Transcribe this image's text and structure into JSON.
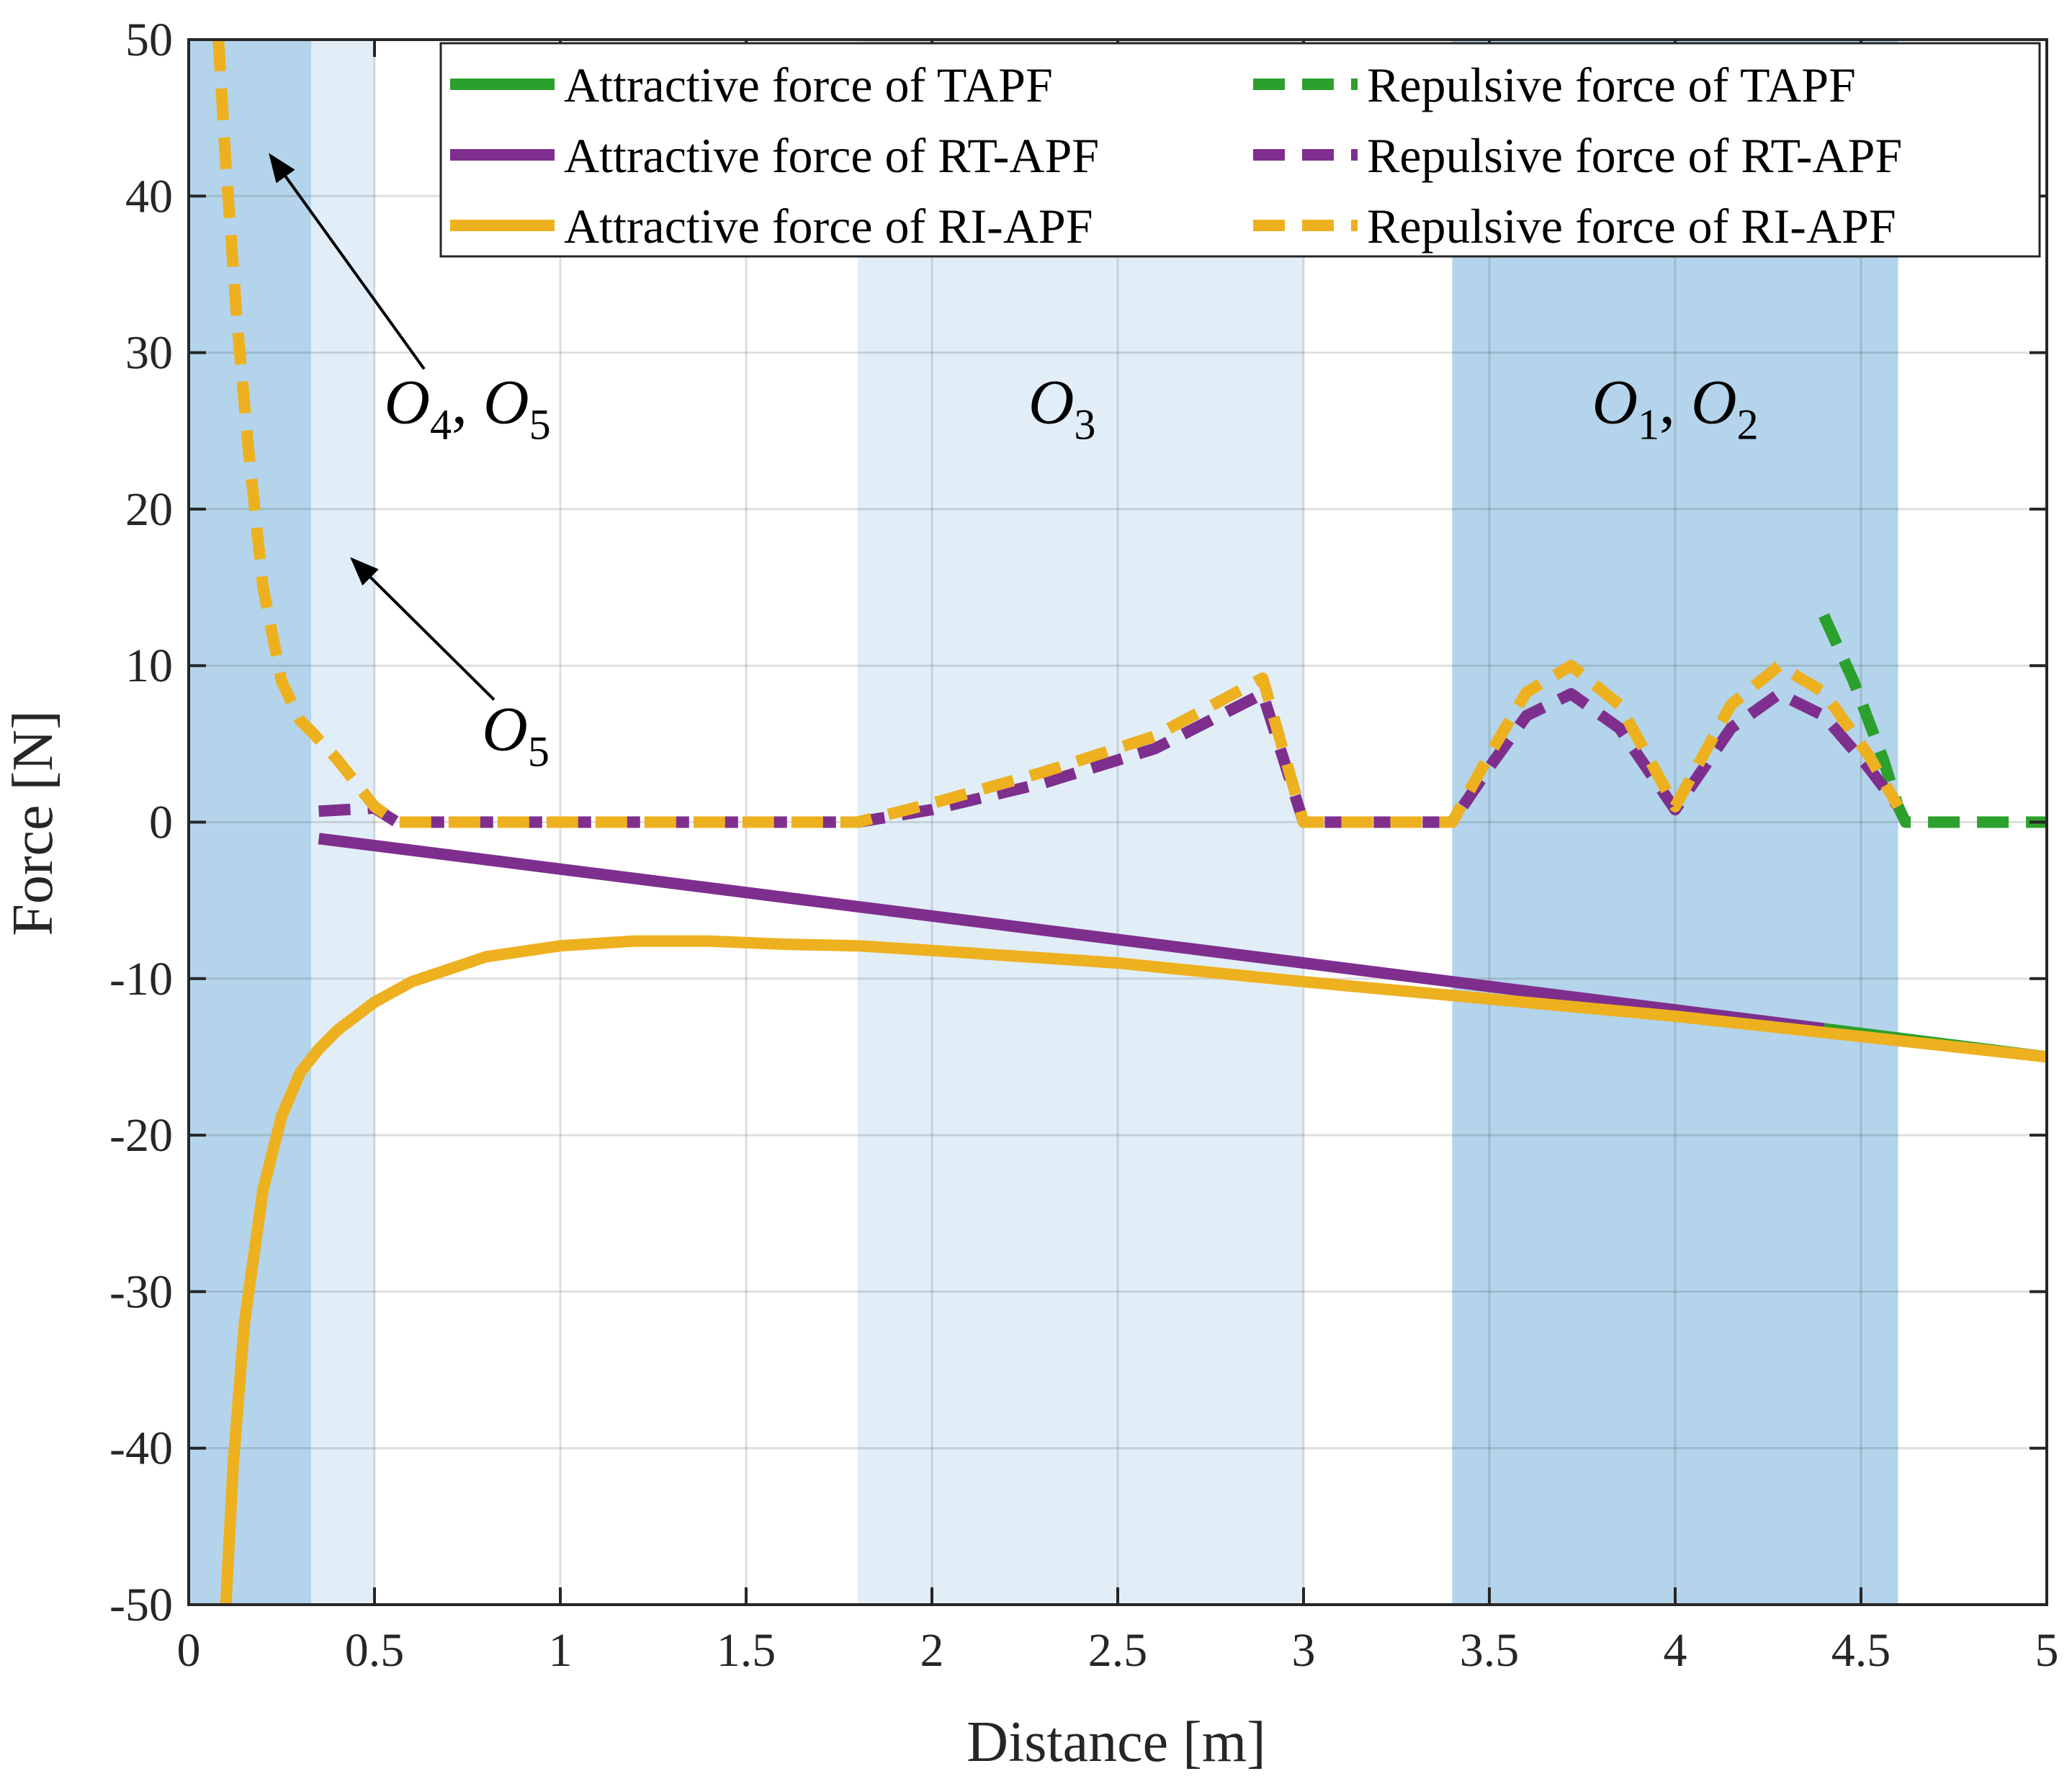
{
  "chart_data": {
    "type": "line",
    "title": "",
    "xlabel": "Distance [m]",
    "ylabel": "Force [N]",
    "xlim": [
      0,
      5
    ],
    "ylim": [
      -50,
      50
    ],
    "grid": true,
    "legend_position": "top-right",
    "x_ticks": [
      "0",
      "0.5",
      "1",
      "1.5",
      "2",
      "2.5",
      "3",
      "3.5",
      "4",
      "4.5",
      "5"
    ],
    "y_ticks": [
      "-50",
      "-40",
      "-30",
      "-20",
      "-10",
      "0",
      "10",
      "20",
      "30",
      "40",
      "50"
    ],
    "shaded_regions": [
      {
        "x": [
          0,
          0.33
        ],
        "shade": "dark"
      },
      {
        "x": [
          0.33,
          0.5
        ],
        "shade": "light"
      },
      {
        "x": [
          1.8,
          3.0
        ],
        "shade": "light"
      },
      {
        "x": [
          3.4,
          4.6
        ],
        "shade": "dark"
      }
    ],
    "colors": {
      "green": "#2ca02c",
      "purple": "#7e2f8e",
      "orange": "#edb120",
      "shade_dark": "#b3d4ea",
      "shade_light": "#e1eef8"
    },
    "series": [
      {
        "name": "Attractive force of TAPF",
        "color": "#2ca02c",
        "style": "solid",
        "x": [
          4.4,
          5.0
        ],
        "y": [
          -13.2,
          -15.0
        ]
      },
      {
        "name": "Repulsive force of TAPF",
        "color": "#2ca02c",
        "style": "dashed",
        "x": [
          4.4,
          4.48,
          4.56,
          4.6,
          4.62,
          5.0
        ],
        "y": [
          13.2,
          9.0,
          4.0,
          1.0,
          0.0,
          0.0
        ]
      },
      {
        "name": "Attractive force of RT-APF",
        "color": "#7e2f8e",
        "style": "solid",
        "x": [
          0.35,
          4.4
        ],
        "y": [
          -1.05,
          -13.2
        ]
      },
      {
        "name": "Repulsive force of RT-APF",
        "color": "#7e2f8e",
        "style": "dashed",
        "x": [
          0.35,
          0.5,
          0.56,
          1.8,
          2.0,
          2.3,
          2.6,
          2.89,
          3.0,
          3.4,
          3.5,
          3.6,
          3.72,
          3.85,
          4.0,
          4.15,
          4.28,
          4.4,
          4.52,
          4.6
        ],
        "y": [
          0.7,
          0.9,
          0.0,
          0.0,
          0.8,
          2.5,
          4.7,
          8.2,
          0.0,
          0.0,
          3.5,
          6.8,
          8.2,
          6.0,
          0.8,
          6.0,
          8.2,
          6.8,
          3.5,
          1.0
        ]
      },
      {
        "name": "Attractive force of RI-APF",
        "color": "#edb120",
        "style": "solid",
        "x": [
          0.1,
          0.12,
          0.15,
          0.2,
          0.25,
          0.3,
          0.35,
          0.4,
          0.5,
          0.6,
          0.7,
          0.8,
          1.0,
          1.2,
          1.4,
          1.6,
          1.8,
          2.0,
          2.5,
          3.0,
          3.5,
          4.0,
          4.5,
          5.0
        ],
        "y": [
          -50.0,
          -41.0,
          -32.0,
          -23.5,
          -18.8,
          -16.0,
          -14.5,
          -13.3,
          -11.5,
          -10.2,
          -9.4,
          -8.6,
          -7.9,
          -7.6,
          -7.6,
          -7.8,
          -7.9,
          -8.2,
          -9.0,
          -10.2,
          -11.3,
          -12.4,
          -13.7,
          -15.0
        ]
      },
      {
        "name": "Repulsive force of RI-APF",
        "color": "#edb120",
        "style": "dashed",
        "x": [
          0.08,
          0.1,
          0.13,
          0.16,
          0.2,
          0.25,
          0.3,
          0.33,
          0.4,
          0.5,
          0.56,
          1.8,
          2.0,
          2.3,
          2.6,
          2.89,
          3.0,
          3.4,
          3.5,
          3.6,
          3.72,
          3.85,
          4.0,
          4.15,
          4.28,
          4.4,
          4.52,
          4.6
        ],
        "y": [
          50.0,
          42.0,
          32.0,
          24.0,
          15.0,
          9.0,
          6.5,
          5.8,
          4.0,
          1.0,
          0.0,
          0.0,
          1.2,
          3.2,
          5.5,
          9.2,
          0.0,
          0.0,
          4.3,
          8.3,
          10.0,
          7.5,
          1.0,
          7.5,
          10.0,
          8.3,
          4.3,
          1.0
        ]
      }
    ],
    "annotations": [
      {
        "main": "O",
        "sub": "4",
        "sep": ", ",
        "main2": "O",
        "sub2": "5",
        "text_at": [
          0.75,
          25.5
        ],
        "arrow_to": [
          0.22,
          42.6
        ]
      },
      {
        "main": "O",
        "sub": "5",
        "text_at": [
          0.88,
          4.6
        ],
        "arrow_to": [
          0.44,
          16.8
        ]
      },
      {
        "main": "O",
        "sub": "3",
        "text_at": [
          2.35,
          25.5
        ]
      },
      {
        "main": "O",
        "sub": "1",
        "sep": ", ",
        "main2": "O",
        "sub2": "2",
        "text_at": [
          4.0,
          25.5
        ]
      }
    ]
  }
}
